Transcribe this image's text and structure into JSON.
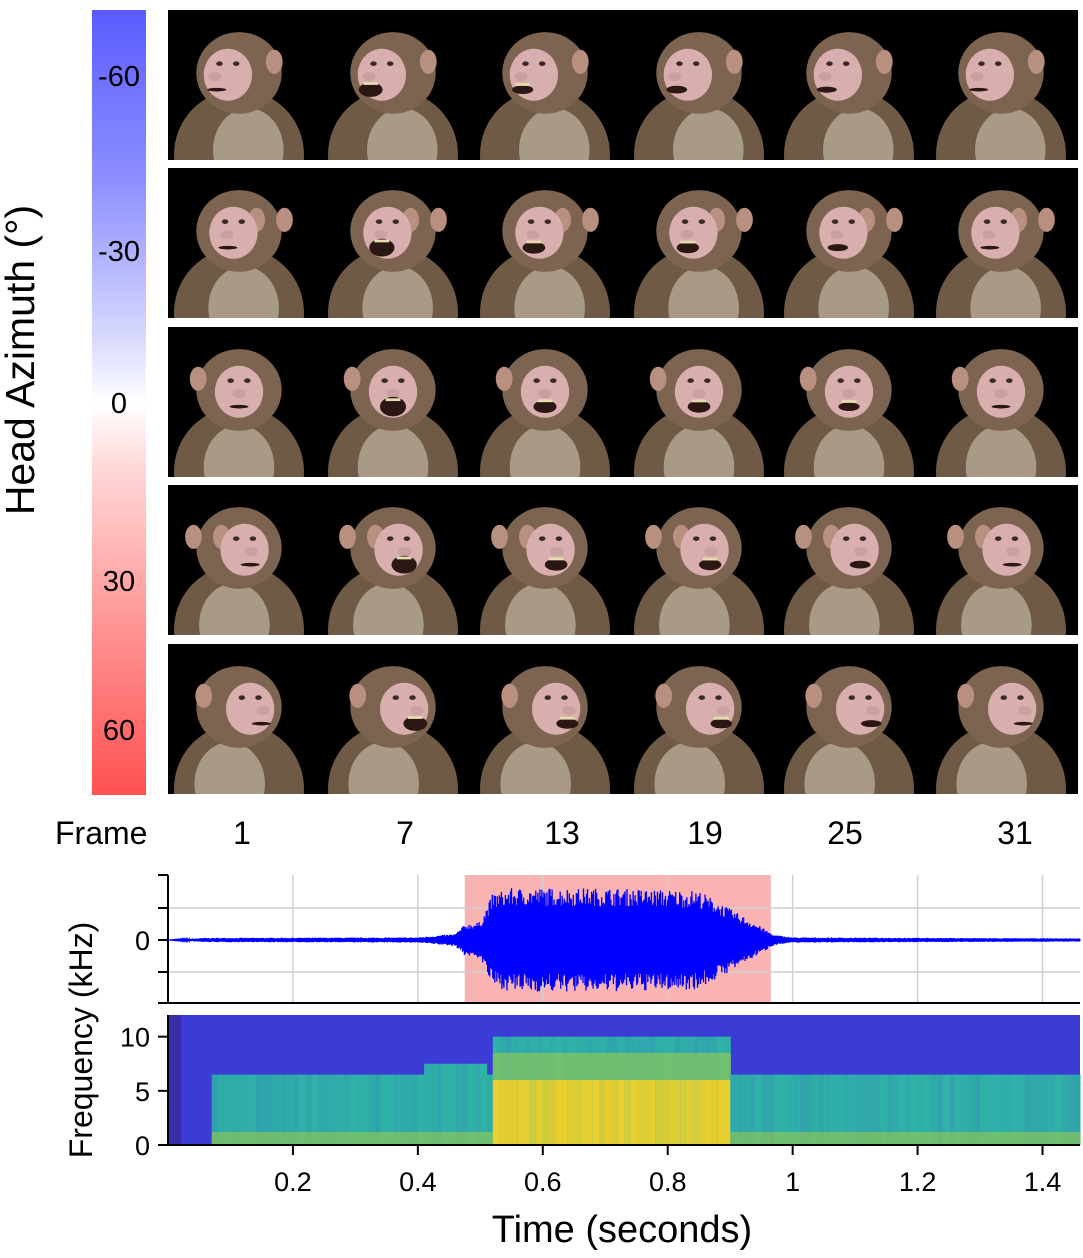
{
  "colorbar": {
    "label": "Head Azimuth (°)",
    "ticks": [
      "-60",
      "-30",
      "0",
      "30",
      "60"
    ],
    "range": [
      -70,
      70
    ],
    "colors": {
      "negative": "#5a5cff",
      "zero": "#ffffff",
      "positive": "#ff5151"
    }
  },
  "frames": {
    "title": "Frame",
    "labels": [
      "1",
      "7",
      "13",
      "19",
      "25",
      "31"
    ]
  },
  "image_rows": [
    {
      "azimuth": -60,
      "mouth_open": [
        0.05,
        0.7,
        0.35,
        0.3,
        0.2,
        0.05
      ]
    },
    {
      "azimuth": -30,
      "mouth_open": [
        0.05,
        0.9,
        0.55,
        0.5,
        0.25,
        0.05
      ]
    },
    {
      "azimuth": 0,
      "mouth_open": [
        0.05,
        1.0,
        0.6,
        0.55,
        0.35,
        0.05
      ]
    },
    {
      "azimuth": 30,
      "mouth_open": [
        0.05,
        0.9,
        0.55,
        0.5,
        0.3,
        0.05
      ]
    },
    {
      "azimuth": 60,
      "mouth_open": [
        0.05,
        0.7,
        0.45,
        0.4,
        0.25,
        0.05
      ]
    }
  ],
  "chart_data": [
    {
      "type": "line",
      "title": "",
      "xlabel": "",
      "ylabel": "",
      "xlim": [
        0,
        1.46
      ],
      "ytick_labels": [
        "0"
      ],
      "highlight_interval": [
        0.475,
        0.965
      ],
      "colors": {
        "waveform": "#0000ff",
        "highlight": "#f9b3b3"
      },
      "envelope": {
        "x": [
          0.0,
          0.06,
          0.4,
          0.46,
          0.475,
          0.5,
          0.52,
          0.55,
          0.7,
          0.85,
          0.9,
          0.95,
          0.97,
          1.0,
          1.46
        ],
        "amplitude": [
          0.0,
          0.04,
          0.05,
          0.12,
          0.3,
          0.35,
          0.9,
          1.0,
          1.0,
          0.95,
          0.6,
          0.25,
          0.1,
          0.05,
          0.03
        ]
      }
    },
    {
      "type": "heatmap",
      "xlabel": "Time (seconds)",
      "ylabel": "Frequency (kHz)",
      "xlim": [
        0,
        1.46
      ],
      "ylim": [
        0,
        12
      ],
      "xtick_labels": [
        "0.2",
        "0.4",
        "0.6",
        "0.8",
        "1",
        "1.2",
        "1.4"
      ],
      "ytick_labels": [
        "0",
        "5",
        "10"
      ],
      "colors": {
        "low": "#3b3bd6",
        "mid": "#2fb4a6",
        "high": "#f2d02a",
        "edge": "#3a2ea8"
      }
    }
  ]
}
